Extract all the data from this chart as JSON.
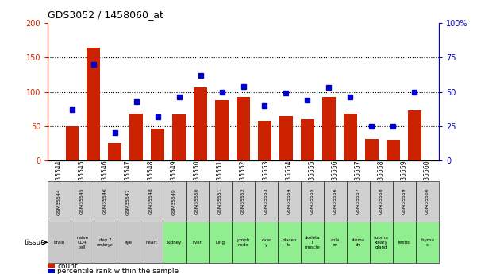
{
  "title": "GDS3052 / 1458060_at",
  "gsm_labels": [
    "GSM35544",
    "GSM35545",
    "GSM35546",
    "GSM35547",
    "GSM35548",
    "GSM35549",
    "GSM35550",
    "GSM35551",
    "GSM35552",
    "GSM35553",
    "GSM35554",
    "GSM35555",
    "GSM35556",
    "GSM35557",
    "GSM35558",
    "GSM35559",
    "GSM35560"
  ],
  "tissue_labels": [
    "brain",
    "naive\nCD4\ncell",
    "day 7\nembryc",
    "eye",
    "heart",
    "kidney",
    "liver",
    "lung",
    "lymph\nnode",
    "ovar\ny",
    "placen\nta",
    "skeleta\nl\nmuscle",
    "sple\nen",
    "stoma\nch",
    "subma\nxillary\ngland",
    "testis",
    "thymu\ns"
  ],
  "tissue_colors": [
    "#c8c8c8",
    "#c8c8c8",
    "#c8c8c8",
    "#c8c8c8",
    "#c8c8c8",
    "#90ee90",
    "#90ee90",
    "#90ee90",
    "#90ee90",
    "#90ee90",
    "#90ee90",
    "#90ee90",
    "#90ee90",
    "#90ee90",
    "#90ee90",
    "#90ee90",
    "#90ee90"
  ],
  "count_values": [
    50,
    165,
    25,
    68,
    46,
    67,
    107,
    88,
    93,
    58,
    65,
    60,
    92,
    68,
    31,
    30,
    73
  ],
  "percentile_values": [
    74,
    140,
    40,
    86,
    64,
    92,
    124,
    100,
    108,
    80,
    98,
    88,
    106,
    92,
    50,
    50,
    100
  ],
  "ylim": [
    0,
    200
  ],
  "yticks_left": [
    0,
    50,
    100,
    150,
    200
  ],
  "ytick_labels_left": [
    "0",
    "50",
    "100",
    "150",
    "200"
  ],
  "ytick_labels_right": [
    "0",
    "25",
    "50",
    "75",
    "100%"
  ],
  "bar_color": "#cc2200",
  "dot_color": "#0000cc",
  "background_color": "#ffffff",
  "legend_count_label": "count",
  "legend_percentile_label": "percentile rank within the sample"
}
